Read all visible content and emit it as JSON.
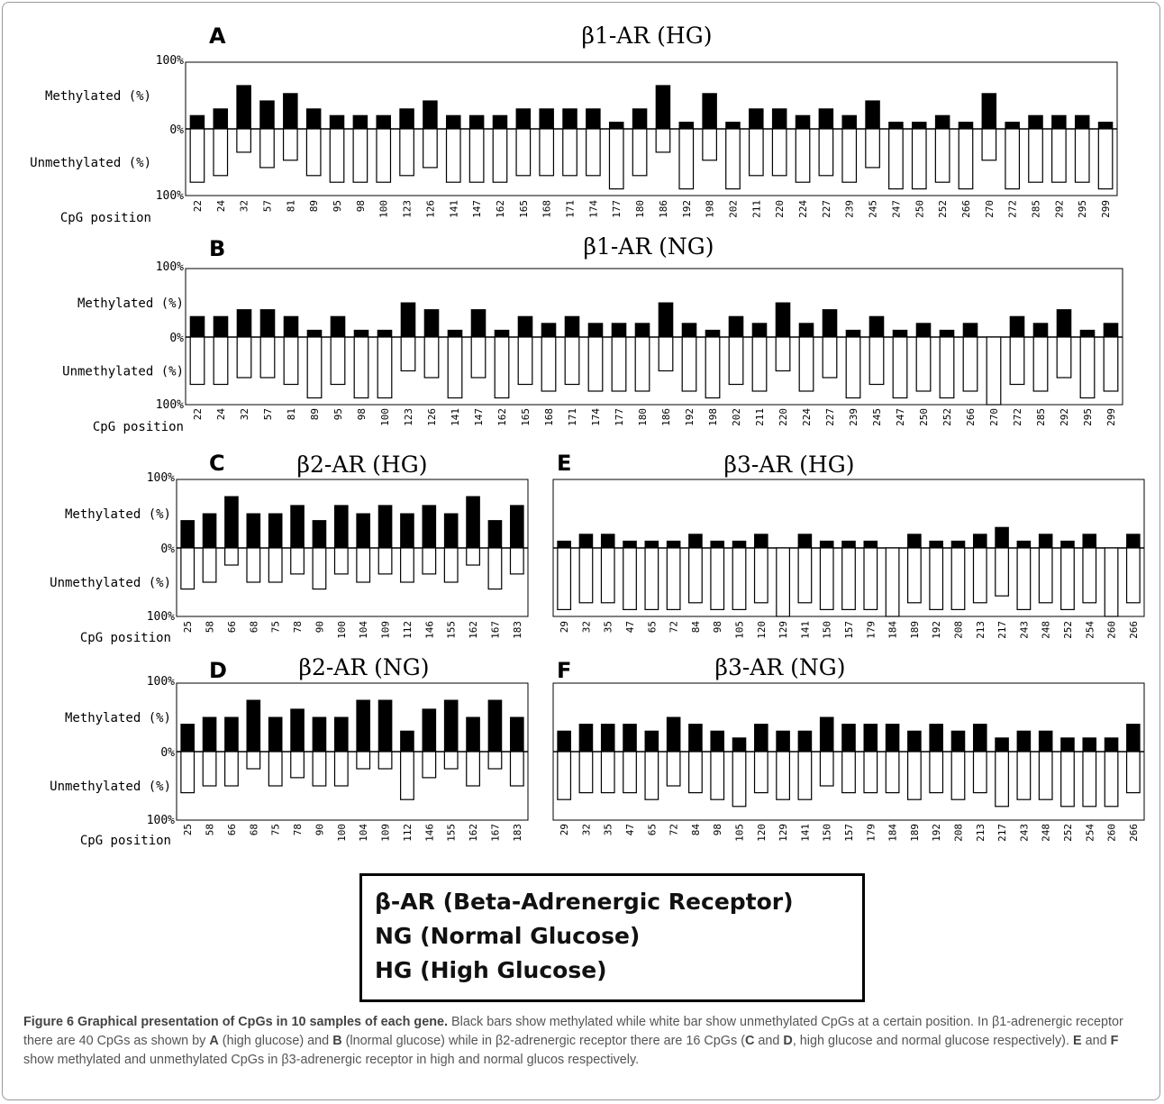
{
  "labels": {
    "pct_top": "100%",
    "pct_mid": "0%",
    "pct_bot": "100%",
    "methylated": "Methylated (%)",
    "unmethylated": "Unmethylated (%)",
    "cpg_position": "CpG position"
  },
  "colors": {
    "methylated": "#000000",
    "unmethylated": "#ffffff",
    "stroke": "#000000"
  },
  "chart_data": [
    {
      "type": "bar",
      "panel": "A",
      "title": "β1-AR (HG)",
      "xlabel": "CpG position",
      "ylabel_top": "Methylated (%)",
      "ylabel_bottom": "Unmethylated (%)",
      "ylim": [
        0,
        100
      ],
      "categories": [
        "22",
        "24",
        "32",
        "57",
        "81",
        "89",
        "95",
        "98",
        "100",
        "123",
        "126",
        "141",
        "147",
        "162",
        "165",
        "168",
        "171",
        "174",
        "177",
        "180",
        "186",
        "192",
        "198",
        "202",
        "211",
        "220",
        "224",
        "227",
        "239",
        "245",
        "247",
        "250",
        "252",
        "266",
        "270",
        "272",
        "285",
        "292",
        "295",
        "299"
      ],
      "series": [
        {
          "name": "Methylated",
          "values": [
            20,
            30,
            65,
            42,
            53,
            30,
            20,
            20,
            20,
            30,
            42,
            20,
            20,
            20,
            30,
            30,
            30,
            30,
            10,
            30,
            65,
            10,
            53,
            10,
            30,
            30,
            20,
            30,
            20,
            42,
            10,
            10,
            20,
            10,
            53,
            10,
            20,
            20,
            20,
            10
          ]
        },
        {
          "name": "Unmethylated",
          "values": [
            80,
            70,
            35,
            58,
            47,
            70,
            80,
            80,
            80,
            70,
            58,
            80,
            80,
            80,
            70,
            70,
            70,
            70,
            90,
            70,
            35,
            90,
            47,
            90,
            70,
            70,
            80,
            70,
            80,
            58,
            90,
            90,
            80,
            90,
            47,
            90,
            80,
            80,
            80,
            90
          ]
        }
      ]
    },
    {
      "type": "bar",
      "panel": "B",
      "title": "β1-AR (NG)",
      "xlabel": "CpG position",
      "ylabel_top": "Methylated (%)",
      "ylabel_bottom": "Unmethylated (%)",
      "ylim": [
        0,
        100
      ],
      "categories": [
        "22",
        "24",
        "32",
        "57",
        "81",
        "89",
        "95",
        "98",
        "100",
        "123",
        "126",
        "141",
        "147",
        "162",
        "165",
        "168",
        "171",
        "174",
        "177",
        "180",
        "186",
        "192",
        "198",
        "202",
        "211",
        "220",
        "224",
        "227",
        "239",
        "245",
        "247",
        "250",
        "252",
        "266",
        "270",
        "272",
        "285",
        "292",
        "295",
        "299"
      ],
      "series": [
        {
          "name": "Methylated",
          "values": [
            30,
            30,
            40,
            40,
            30,
            10,
            30,
            10,
            10,
            50,
            40,
            10,
            40,
            10,
            30,
            20,
            30,
            20,
            20,
            20,
            50,
            20,
            10,
            30,
            20,
            50,
            20,
            40,
            10,
            30,
            10,
            20,
            10,
            20,
            0,
            30,
            20,
            40,
            10,
            20
          ]
        },
        {
          "name": "Unmethylated",
          "values": [
            70,
            70,
            60,
            60,
            70,
            90,
            70,
            90,
            90,
            50,
            60,
            90,
            60,
            90,
            70,
            80,
            70,
            80,
            80,
            80,
            50,
            80,
            90,
            70,
            80,
            50,
            80,
            60,
            90,
            70,
            90,
            80,
            90,
            80,
            100,
            70,
            80,
            60,
            90,
            80
          ]
        }
      ]
    },
    {
      "type": "bar",
      "panel": "C",
      "title": "β2-AR (HG)",
      "xlabel": "CpG position",
      "ylabel_top": "Methylated (%)",
      "ylabel_bottom": "Unmethylated (%)",
      "ylim": [
        0,
        100
      ],
      "categories": [
        "25",
        "58",
        "66",
        "68",
        "75",
        "78",
        "90",
        "100",
        "104",
        "109",
        "112",
        "146",
        "155",
        "162",
        "167",
        "183"
      ],
      "series": [
        {
          "name": "Methylated",
          "values": [
            40,
            50,
            75,
            50,
            50,
            62,
            40,
            62,
            50,
            62,
            50,
            62,
            50,
            75,
            40,
            62
          ]
        },
        {
          "name": "Unmethylated",
          "values": [
            60,
            50,
            25,
            50,
            50,
            38,
            60,
            38,
            50,
            38,
            50,
            38,
            50,
            25,
            60,
            38
          ]
        }
      ]
    },
    {
      "type": "bar",
      "panel": "D",
      "title": "β2-AR (NG)",
      "xlabel": "CpG position",
      "ylabel_top": "Methylated (%)",
      "ylabel_bottom": "Unmethylated (%)",
      "ylim": [
        0,
        100
      ],
      "categories": [
        "25",
        "58",
        "66",
        "68",
        "75",
        "78",
        "90",
        "100",
        "104",
        "109",
        "112",
        "146",
        "155",
        "162",
        "167",
        "183"
      ],
      "series": [
        {
          "name": "Methylated",
          "values": [
            40,
            50,
            50,
            75,
            50,
            62,
            50,
            50,
            75,
            75,
            30,
            62,
            75,
            50,
            75,
            50
          ]
        },
        {
          "name": "Unmethylated",
          "values": [
            60,
            50,
            50,
            25,
            50,
            38,
            50,
            50,
            25,
            25,
            70,
            38,
            25,
            50,
            25,
            50
          ]
        }
      ]
    },
    {
      "type": "bar",
      "panel": "E",
      "title": "β3-AR (HG)",
      "xlabel": "CpG position",
      "ylabel_top": "Methylated (%)",
      "ylabel_bottom": "Unmethylated (%)",
      "ylim": [
        0,
        100
      ],
      "categories": [
        "29",
        "32",
        "35",
        "47",
        "65",
        "72",
        "84",
        "98",
        "105",
        "120",
        "129",
        "141",
        "150",
        "157",
        "179",
        "184",
        "189",
        "192",
        "208",
        "213",
        "217",
        "243",
        "248",
        "252",
        "254",
        "260",
        "266"
      ],
      "series": [
        {
          "name": "Methylated",
          "values": [
            10,
            20,
            20,
            10,
            10,
            10,
            20,
            10,
            10,
            20,
            0,
            20,
            10,
            10,
            10,
            0,
            20,
            10,
            10,
            20,
            30,
            10,
            20,
            10,
            20,
            0,
            20
          ]
        },
        {
          "name": "Unmethylated",
          "values": [
            90,
            80,
            80,
            90,
            90,
            90,
            80,
            90,
            90,
            80,
            100,
            80,
            90,
            90,
            90,
            100,
            80,
            90,
            90,
            80,
            70,
            90,
            80,
            90,
            80,
            100,
            80
          ]
        }
      ]
    },
    {
      "type": "bar",
      "panel": "F",
      "title": "β3-AR (NG)",
      "xlabel": "CpG position",
      "ylabel_top": "Methylated (%)",
      "ylabel_bottom": "Unmethylated (%)",
      "ylim": [
        0,
        100
      ],
      "categories": [
        "29",
        "32",
        "35",
        "47",
        "65",
        "72",
        "84",
        "98",
        "105",
        "120",
        "129",
        "141",
        "150",
        "157",
        "179",
        "184",
        "189",
        "192",
        "208",
        "213",
        "217",
        "243",
        "248",
        "252",
        "254",
        "260",
        "266"
      ],
      "series": [
        {
          "name": "Methylated",
          "values": [
            30,
            40,
            40,
            40,
            30,
            50,
            40,
            30,
            20,
            40,
            30,
            30,
            50,
            40,
            40,
            40,
            30,
            40,
            30,
            40,
            20,
            30,
            30,
            20,
            20,
            20,
            40
          ]
        },
        {
          "name": "Unmethylated",
          "values": [
            70,
            60,
            60,
            60,
            70,
            50,
            60,
            70,
            80,
            60,
            70,
            70,
            50,
            60,
            60,
            60,
            70,
            60,
            70,
            60,
            80,
            70,
            70,
            80,
            80,
            80,
            60
          ]
        }
      ]
    }
  ],
  "key": {
    "line1": "β-AR (Beta-Adrenergic Receptor)",
    "line2": "NG (Normal Glucose)",
    "line3": "HG (High Glucose)"
  },
  "caption": {
    "title": "Figure 6 Graphical presentation of CpGs in 10 samples of each gene.",
    "t1": " Black bars show methylated while white bar show unmethylated CpGs at a certain position. In β1-adrenergic receptor there are 40 CpGs as shown by ",
    "b1": "A",
    "t2": " (high glucose) and ",
    "b2": "B",
    "t3": " (lnormal glucose) while in β2-adrenergic receptor there are 16 CpGs (",
    "b3": "C",
    "t4": " and ",
    "b4": "D",
    "t5": ", high glucose and normal glucose respectively). ",
    "b5": "E",
    "t6": " and ",
    "b6": "F",
    "t7": " show methylated and unmethylated CpGs in β3-adrenergic receptor in high and normal glucos respectively."
  }
}
